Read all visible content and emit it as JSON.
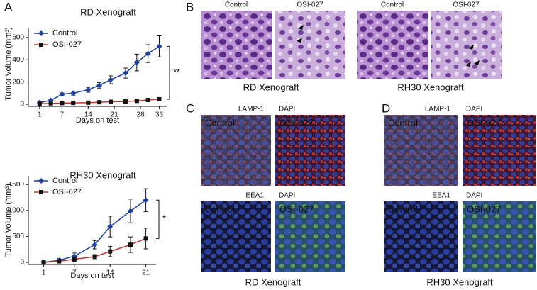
{
  "panel_labels": [
    "A",
    "B",
    "C",
    "D"
  ],
  "chart_data": [
    {
      "type": "line",
      "title": "RD Xenograft",
      "xlabel": "Days on test",
      "ylabel": "Tumor Volume (mm³)",
      "x": [
        1,
        4,
        7,
        10,
        14,
        17,
        20,
        24,
        27,
        30,
        33
      ],
      "xlim": [
        -2,
        35
      ],
      "xticks": [
        1,
        7,
        14,
        21,
        28,
        33
      ],
      "ylim": [
        0,
        650
      ],
      "yticks": [
        0,
        200,
        400,
        600
      ],
      "legend": "upper left",
      "annotation": "**",
      "series": [
        {
          "name": "Control",
          "color": "#1f3f9f",
          "marker": "diamond",
          "marker_color": "#1f3f9f",
          "values": [
            15,
            35,
            90,
            100,
            130,
            170,
            220,
            280,
            375,
            455,
            520
          ],
          "errors": [
            5,
            8,
            10,
            18,
            22,
            25,
            35,
            45,
            75,
            80,
            95
          ]
        },
        {
          "name": "OSI-027",
          "color": "#c0392b",
          "marker": "square",
          "marker_color": "#111111",
          "values": [
            5,
            8,
            10,
            12,
            14,
            18,
            22,
            25,
            30,
            38,
            45
          ],
          "errors": [
            2,
            3,
            3,
            4,
            4,
            5,
            6,
            6,
            7,
            8,
            10
          ]
        }
      ]
    },
    {
      "type": "line",
      "title": "RH30 Xenograft",
      "xlabel": "Days on test",
      "ylabel": "Tumor Volume (mm³)",
      "x": [
        1,
        4,
        7,
        11,
        14,
        18,
        21
      ],
      "xlim": [
        -2,
        23
      ],
      "xticks": [
        1,
        7,
        14,
        21
      ],
      "ylim": [
        0,
        1600
      ],
      "yticks": [
        0,
        500,
        1000,
        1500
      ],
      "legend": "upper left",
      "annotation": "*",
      "series": [
        {
          "name": "Control",
          "color": "#1f3f9f",
          "marker": "diamond",
          "marker_color": "#1f3f9f",
          "values": [
            0,
            40,
            120,
            340,
            690,
            990,
            1200
          ],
          "errors": [
            15,
            30,
            60,
            80,
            200,
            230,
            220
          ]
        },
        {
          "name": "OSI-027",
          "color": "#c0392b",
          "marker": "square",
          "marker_color": "#111111",
          "values": [
            0,
            20,
            60,
            110,
            210,
            340,
            460
          ],
          "errors": [
            10,
            20,
            40,
            40,
            100,
            150,
            200
          ]
        }
      ]
    }
  ],
  "histology": {
    "headers": [
      "Control",
      "OSI-027",
      "Control",
      "OSI-027"
    ],
    "captions": [
      "RD Xenograft",
      "RH30 Xenograft"
    ]
  },
  "fluorescence": [
    {
      "caption": "RD Xenograft",
      "rows": [
        {
          "stains": [
            "LAMP-1",
            "DAPI"
          ],
          "labels": [
            "Control",
            "OSI-027"
          ]
        },
        {
          "stains": [
            "EEA1",
            "DAPI"
          ],
          "labels": [
            "Control",
            "OSI-027"
          ]
        }
      ]
    },
    {
      "caption": "RH30 Xenograft",
      "rows": [
        {
          "stains": [
            "LAMP-1",
            "DAPI"
          ],
          "labels": [
            "Control",
            "OSI-027"
          ]
        },
        {
          "stains": [
            "EEA1",
            "DAPI"
          ],
          "labels": [
            "Control",
            "OSI-027"
          ]
        }
      ]
    }
  ]
}
